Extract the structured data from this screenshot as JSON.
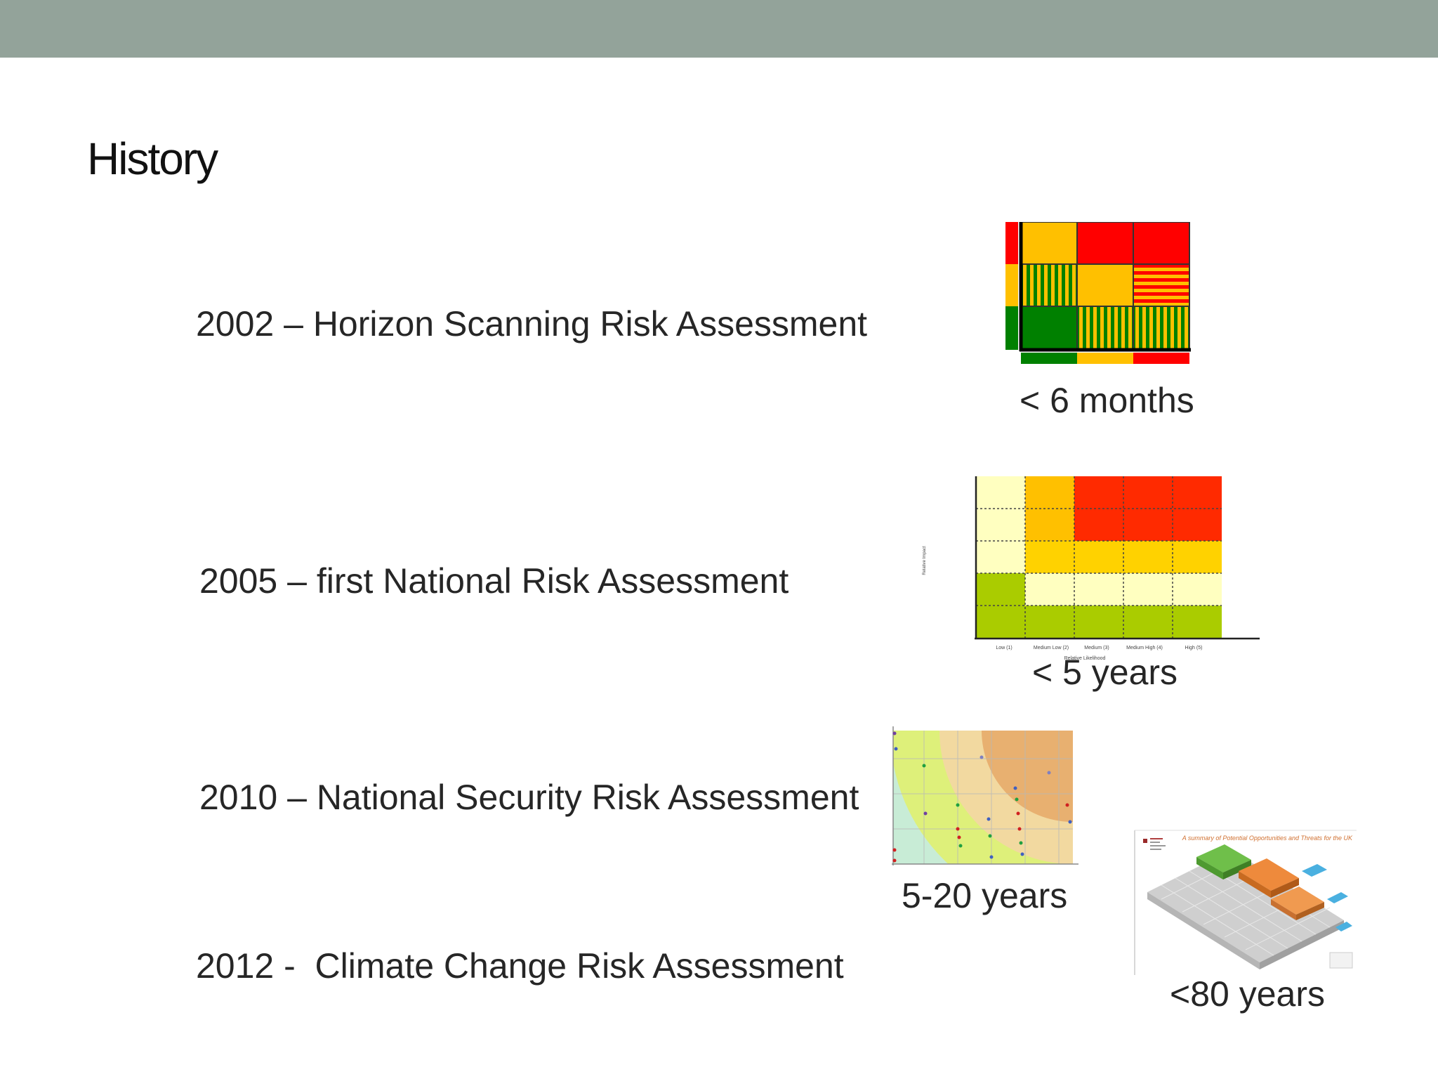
{
  "title": "History",
  "entries": [
    {
      "text": "2002 – Horizon Scanning Risk Assessment"
    },
    {
      "text": "2005 – first National Risk Assessment"
    },
    {
      "text": "2010 – National Security Risk Assessment"
    },
    {
      "text": "2012 -  Climate Change Risk Assessment"
    }
  ],
  "captions": [
    {
      "text": "< 6 months"
    },
    {
      "text": "< 5 years"
    },
    {
      "text": "5-20 years"
    },
    {
      "text": "<80 years"
    }
  ],
  "figure2": {
    "y_axis_label": "Relative Impact",
    "x_axis_label": "Relative Likelihood",
    "x_ticks": [
      "Low (1)",
      "Medium Low (2)",
      "Medium (3)",
      "Medium High (4)",
      "High (5)"
    ]
  },
  "figure4": {
    "title": "A summary of Potential Opportunities and Threats for the UK"
  },
  "colors": {
    "header_bar": "#93a39a",
    "red": "#ff0000",
    "amber": "#ffc000",
    "green": "#008000"
  }
}
